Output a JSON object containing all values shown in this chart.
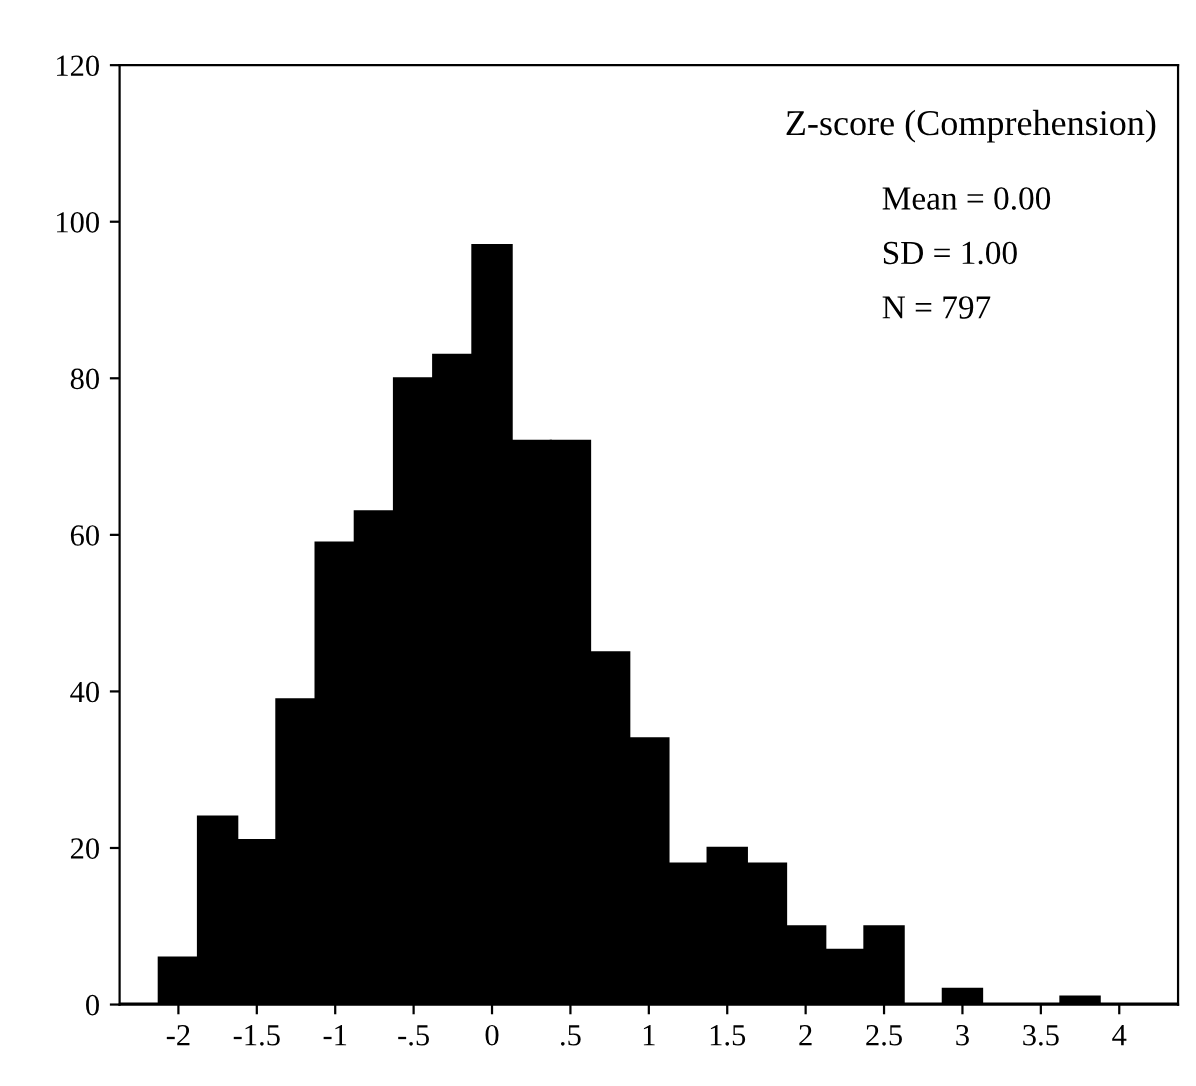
{
  "chart_data": {
    "type": "histogram",
    "title": "Z-score (Comprehension)",
    "annotations": [
      "Mean = 0.00",
      "SD = 1.00",
      "N = 797"
    ],
    "bins": [
      -2.375,
      -2.125,
      -1.875,
      -1.625,
      -1.375,
      -1.125,
      -0.875,
      -0.625,
      -0.375,
      -0.125,
      0.125,
      0.375,
      0.625,
      0.875,
      1.125,
      1.375,
      1.625,
      1.875,
      2.125,
      2.375,
      2.625,
      2.875,
      3.125,
      3.375,
      3.625,
      3.875,
      4.125,
      4.375
    ],
    "values": [
      0,
      6,
      24,
      21,
      39,
      59,
      63,
      80,
      83,
      97,
      72,
      72,
      45,
      34,
      18,
      20,
      18,
      10,
      7,
      10,
      0,
      2,
      0,
      0,
      1,
      0,
      0
    ],
    "color": "#000000",
    "xlim": [
      -2.375,
      4.375
    ],
    "xticks": [
      -2,
      {
        "value": -1.5,
        "label": "-1.5"
      },
      -1,
      {
        "value": -0.5,
        "label": "-.5"
      },
      0,
      {
        "value": 0.5,
        "label": ".5"
      },
      1,
      1.5,
      2,
      2.5,
      3,
      3.5,
      4
    ],
    "ylim": [
      0,
      120
    ],
    "yticks": [
      0,
      20,
      40,
      60,
      80,
      100,
      120
    ],
    "grid": false,
    "legend": false
  }
}
